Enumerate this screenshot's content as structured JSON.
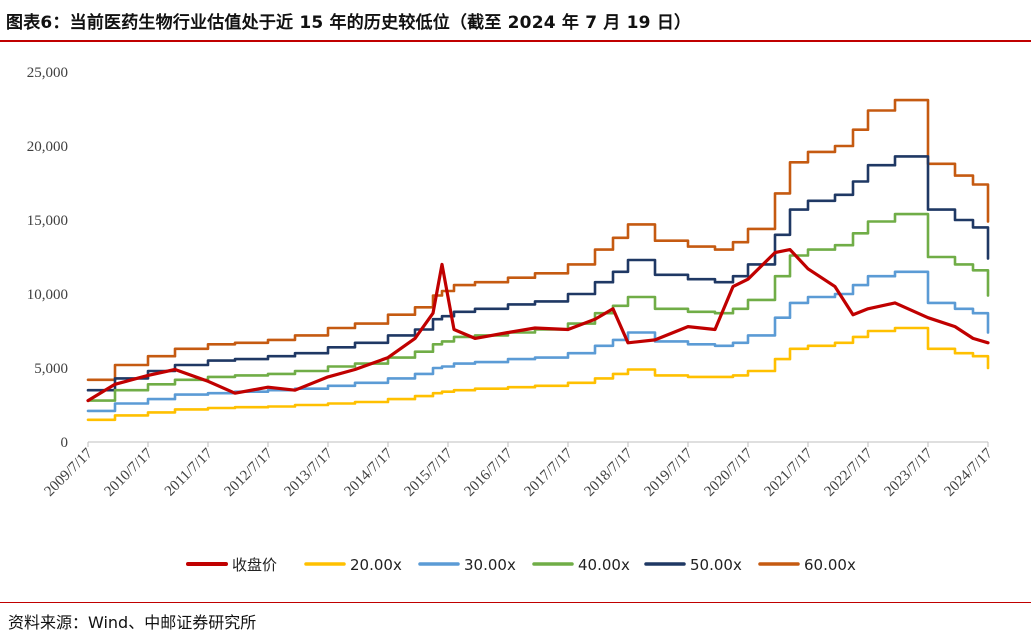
{
  "header": {
    "title": "图表6：当前医药生物行业估值处于近 15 年的历史较低位（截至 2024 年 7 月 19 日）"
  },
  "footer": {
    "source": "资料来源：Wind、中邮证券研究所"
  },
  "colors": {
    "accent_rule": "#c00000"
  },
  "chart_data": {
    "type": "line",
    "title": "",
    "xlabel": "",
    "ylabel": "",
    "ylim": [
      0,
      25000
    ],
    "yticks": [
      "0",
      "5,000",
      "10,000",
      "15,000",
      "20,000",
      "25,000"
    ],
    "x_tick_labels": [
      "2009/7/17",
      "2010/7/17",
      "2011/7/17",
      "2012/7/17",
      "2013/7/17",
      "2014/7/17",
      "2015/7/17",
      "2016/7/17",
      "2017/7/17",
      "2018/7/17",
      "2019/7/17",
      "2020/7/17",
      "2021/7/17",
      "2022/7/17",
      "2023/7/17",
      "2024/7/17"
    ],
    "x": [
      2009.55,
      2010.0,
      2010.55,
      2011.0,
      2011.55,
      2012.0,
      2012.55,
      2013.0,
      2013.55,
      2014.0,
      2014.55,
      2015.0,
      2015.3,
      2015.45,
      2015.65,
      2016.0,
      2016.55,
      2017.0,
      2017.55,
      2018.0,
      2018.3,
      2018.55,
      2019.0,
      2019.55,
      2020.0,
      2020.3,
      2020.55,
      2021.0,
      2021.25,
      2021.55,
      2022.0,
      2022.3,
      2022.55,
      2023.0,
      2023.55,
      2024.0,
      2024.3,
      2024.55
    ],
    "legend_position": "bottom",
    "grid": false,
    "series": [
      {
        "name": "收盘价",
        "color": "#c00000",
        "values": [
          2800,
          3900,
          4500,
          4900,
          4100,
          3300,
          3700,
          3500,
          4400,
          4900,
          5700,
          7000,
          8700,
          12000,
          7600,
          7000,
          7400,
          7700,
          7600,
          8300,
          9000,
          6700,
          6900,
          7800,
          7600,
          10500,
          11000,
          12800,
          13000,
          11700,
          10500,
          8600,
          9000,
          9400,
          8400,
          7800,
          7000,
          6700
        ]
      },
      {
        "name": "20.00x",
        "color": "#ffc000",
        "values": [
          1500,
          1800,
          2000,
          2200,
          2300,
          2350,
          2400,
          2500,
          2600,
          2700,
          2900,
          3100,
          3300,
          3400,
          3500,
          3600,
          3700,
          3800,
          4000,
          4300,
          4600,
          4900,
          4500,
          4400,
          4400,
          4500,
          4800,
          5600,
          6300,
          6500,
          6700,
          7100,
          7500,
          7700,
          6300,
          6000,
          5800,
          5000
        ]
      },
      {
        "name": "30.00x",
        "color": "#5b9bd5",
        "values": [
          2100,
          2600,
          2900,
          3200,
          3300,
          3400,
          3500,
          3600,
          3800,
          4000,
          4300,
          4600,
          5000,
          5100,
          5300,
          5400,
          5600,
          5700,
          6000,
          6500,
          6900,
          7400,
          6800,
          6600,
          6500,
          6700,
          7200,
          8400,
          9400,
          9800,
          10000,
          10600,
          11200,
          11500,
          9400,
          9000,
          8700,
          7400
        ]
      },
      {
        "name": "40.00x",
        "color": "#70ad47",
        "values": [
          2800,
          3500,
          3900,
          4200,
          4400,
          4500,
          4600,
          4800,
          5100,
          5300,
          5700,
          6100,
          6600,
          6800,
          7100,
          7200,
          7400,
          7600,
          8000,
          8700,
          9200,
          9800,
          9000,
          8800,
          8700,
          9000,
          9600,
          11200,
          12600,
          13000,
          13300,
          14100,
          14900,
          15400,
          12500,
          12000,
          11600,
          9900
        ]
      },
      {
        "name": "50.00x",
        "color": "#1f3864",
        "values": [
          3500,
          4300,
          4800,
          5200,
          5500,
          5600,
          5800,
          6000,
          6400,
          6700,
          7200,
          7600,
          8300,
          8500,
          8800,
          9000,
          9300,
          9500,
          10000,
          10800,
          11500,
          12300,
          11300,
          11000,
          10800,
          11200,
          12000,
          14000,
          15700,
          16300,
          16700,
          17600,
          18700,
          19300,
          15700,
          15000,
          14500,
          12400
        ]
      },
      {
        "name": "60.00x",
        "color": "#c55a11",
        "values": [
          4200,
          5200,
          5800,
          6300,
          6600,
          6700,
          6900,
          7200,
          7700,
          8000,
          8600,
          9100,
          9900,
          10200,
          10600,
          10800,
          11100,
          11400,
          12000,
          13000,
          13800,
          14700,
          13600,
          13200,
          13000,
          13500,
          14400,
          16800,
          18900,
          19600,
          20000,
          21100,
          22400,
          23100,
          18800,
          18000,
          17400,
          14900
        ]
      }
    ]
  }
}
